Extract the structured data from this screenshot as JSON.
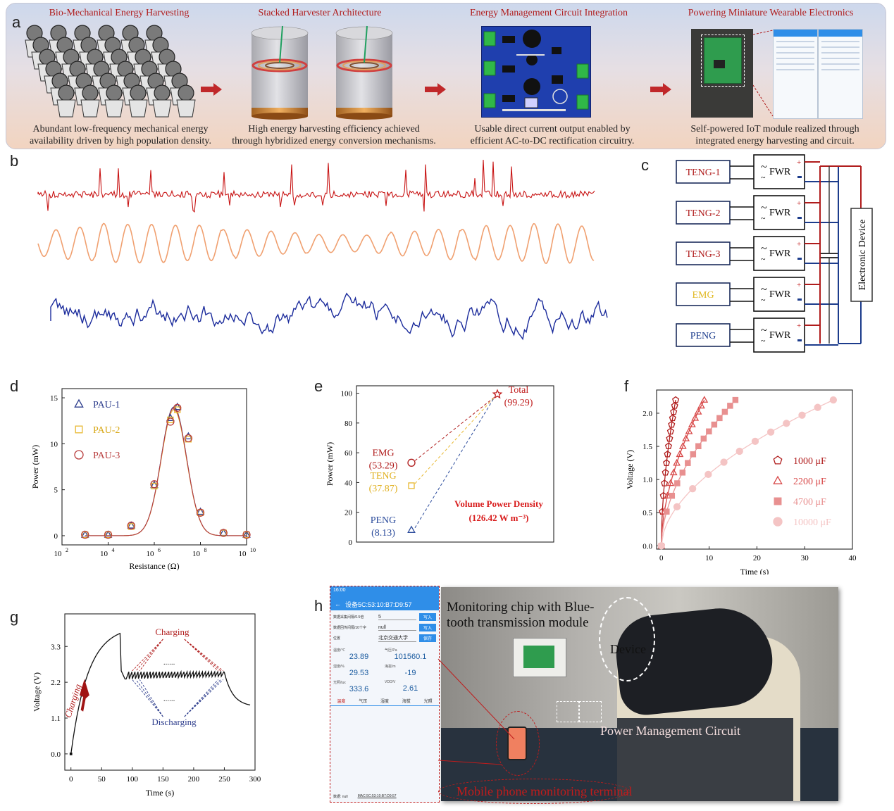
{
  "panel_labels": {
    "a": "a",
    "b": "b",
    "c": "c",
    "d": "d",
    "e": "e",
    "f": "f",
    "g": "g",
    "h": "h"
  },
  "panel_a": {
    "titles": [
      "Bio-Mechanical Energy Harvesting",
      "Stacked Harvester Architecture",
      "Energy Management Circuit Integration",
      "Powering Miniature Wearable Electronics"
    ],
    "captions": [
      [
        "Abundant low-frequency mechanical energy",
        "availability driven by high population density."
      ],
      [
        "High energy harvesting efficiency achieved",
        "through hybridized energy conversion mechanisms."
      ],
      [
        "Usable direct current output enabled by",
        "efficient AC-to-DC rectification circuitry."
      ],
      [
        "Self-powered IoT module realized through",
        "integrated energy harvesting and circuit."
      ]
    ],
    "colors": {
      "title": "#b01c1c",
      "arrow": "#c0282a"
    }
  },
  "panel_b": {
    "colors": [
      "#c81414",
      "#f0a070",
      "#1c2c9c"
    ]
  },
  "panel_c": {
    "sources": [
      "TENG-1",
      "TENG-2",
      "TENG-3",
      "EMG",
      "PENG"
    ],
    "source_colors": [
      "#b01c1c",
      "#b01c1c",
      "#b01c1c",
      "#e0b820",
      "#1c3c8c"
    ],
    "rectifier_label": "FWR",
    "rectifier_symbol": "~",
    "plus_sign": "+",
    "device_label": "Electronic Device"
  },
  "chart_data": [
    {
      "panel": "d",
      "type": "scatter",
      "xlabel": "Resistance (Ω)",
      "ylabel": "Power (mW)",
      "x_scale": "log",
      "xlim": [
        100,
        10000000000
      ],
      "ylim": [
        -1,
        16
      ],
      "x_ticks": [
        {
          "base": "10",
          "exp": "2"
        },
        {
          "base": "10",
          "exp": "4"
        },
        {
          "base": "10",
          "exp": "6"
        },
        {
          "base": "10",
          "exp": "8"
        },
        {
          "base": "10",
          "exp": "10"
        }
      ],
      "y_ticks": [
        "0",
        "5",
        "10",
        "15"
      ],
      "legend_position": "top-left",
      "series": [
        {
          "name": "PAU-1",
          "marker": "triangle",
          "color": "#2c3c8c",
          "x": [
            1000,
            10000,
            100000,
            1000000,
            5000000,
            10000000,
            30000000,
            100000000,
            1000000000,
            10000000000
          ],
          "y": [
            0.1,
            0.1,
            1.1,
            5.5,
            12.8,
            14.0,
            10.8,
            2.6,
            0.3,
            0.1
          ]
        },
        {
          "name": "PAU-2",
          "marker": "square",
          "color": "#e8b830",
          "x": [
            1000,
            10000,
            100000,
            1000000,
            5000000,
            10000000,
            30000000,
            100000000,
            1000000000,
            10000000000
          ],
          "y": [
            0.1,
            0.1,
            1.0,
            5.4,
            12.6,
            13.7,
            10.5,
            2.5,
            0.3,
            0.1
          ]
        },
        {
          "name": "PAU-3",
          "marker": "circle",
          "color": "#b83c3c",
          "x": [
            1000,
            10000,
            100000,
            1000000,
            5000000,
            10000000,
            30000000,
            100000000,
            1000000000,
            10000000000
          ],
          "y": [
            0.1,
            0.1,
            1.1,
            5.6,
            12.4,
            13.9,
            10.6,
            2.5,
            0.3,
            0.1
          ]
        }
      ]
    },
    {
      "panel": "e",
      "type": "scatter",
      "ylabel": "Power (mW)",
      "ylim": [
        0,
        105
      ],
      "y_ticks": [
        "0",
        "20",
        "40",
        "60",
        "80",
        "100"
      ],
      "points": [
        {
          "label": "EMG",
          "value_text": "(53.29)",
          "value": 53.29,
          "marker": "circle",
          "color": "#b01c1c"
        },
        {
          "label": "TENG",
          "value_text": "(37.87)",
          "value": 37.87,
          "marker": "square",
          "color": "#e8b830"
        },
        {
          "label": "PENG",
          "value_text": "(8.13)",
          "value": 8.13,
          "marker": "triangle",
          "color": "#2c4c9c"
        },
        {
          "label": "Total",
          "value_text": "(99.29)",
          "value": 99.29,
          "marker": "star",
          "color": "#c01c1c"
        }
      ],
      "annotation": [
        "Volume Power Density",
        "(126.42 W m⁻³)"
      ]
    },
    {
      "panel": "f",
      "type": "line",
      "xlabel": "Time (s)",
      "ylabel": "Voltage (V)",
      "xlim": [
        -1,
        40
      ],
      "ylim": [
        -0.05,
        2.35
      ],
      "x_ticks": [
        "0",
        "10",
        "20",
        "30",
        "40"
      ],
      "y_ticks": [
        "0.0",
        "0.5",
        "1.0",
        "1.5",
        "2.0"
      ],
      "legend_position": "right",
      "series": [
        {
          "name": "1000 μF",
          "marker": "pentagon",
          "color": "#b01c1c",
          "tau": 2.2,
          "t_end": 3.0
        },
        {
          "name": "2200 μF",
          "marker": "triangle",
          "color": "#d84848",
          "tau": 6.5,
          "t_end": 9.0
        },
        {
          "name": "4700 μF",
          "marker": "square",
          "color": "#e89090",
          "tau": 11.5,
          "t_end": 15.5
        },
        {
          "name": "10000 μF",
          "marker": "circle",
          "color": "#f4c4c4",
          "tau": 27.0,
          "t_end": 36.0
        }
      ]
    },
    {
      "panel": "g",
      "type": "line",
      "xlabel": "Time (s)",
      "ylabel": "Voltage (V)",
      "xlim": [
        -10,
        300
      ],
      "ylim": [
        -0.5,
        4.3
      ],
      "x_ticks": [
        "0",
        "50",
        "100",
        "150",
        "200",
        "250",
        "300"
      ],
      "y_ticks": [
        "0.0",
        "1.1",
        "2.2",
        "3.3"
      ],
      "annotations": {
        "charging": "Charging",
        "discharging": "Discharging",
        "ellipsis": "......",
        "charging_rotated": "Charging"
      },
      "colors": {
        "charging": "#b01c1c",
        "discharging": "#2c3c8c",
        "line": "#111111"
      }
    }
  ],
  "panel_h": {
    "phone": {
      "time": "16:00",
      "device_title": "设备5C:53:10:B7:D9:57",
      "rows": [
        {
          "label": "数据采集间隔/0.5倍",
          "value": "5",
          "button": "写入"
        },
        {
          "label": "数据回传间隔/10个字",
          "value": "null",
          "button": "写入"
        },
        {
          "label": "位置",
          "value": "北京交通大学",
          "button": "保存"
        }
      ],
      "readings": [
        {
          "label": "温度/℃",
          "value": "23.89"
        },
        {
          "label": "气压/Pa",
          "value": "101560.1"
        },
        {
          "label": "湿度/%",
          "value": "29.53"
        },
        {
          "label": "海拔/m",
          "value": "-19"
        },
        {
          "label": "光照/lux",
          "value": "333.6"
        },
        {
          "label": "VDD/V",
          "value": "2.61"
        }
      ],
      "tabs": [
        "温度",
        "气压",
        "湿度",
        "海拔",
        "光照"
      ],
      "footer_left": "数据: null",
      "footer_mac": "MAC:5C:53:10:B7:D9:57"
    },
    "labels": {
      "chip": [
        "Monitoring chip with Blue-",
        "tooth transmission module"
      ],
      "device": "Device",
      "pmc": "Power Management Circuit",
      "phone_terminal": "Mobile phone monitoring terminal"
    }
  }
}
